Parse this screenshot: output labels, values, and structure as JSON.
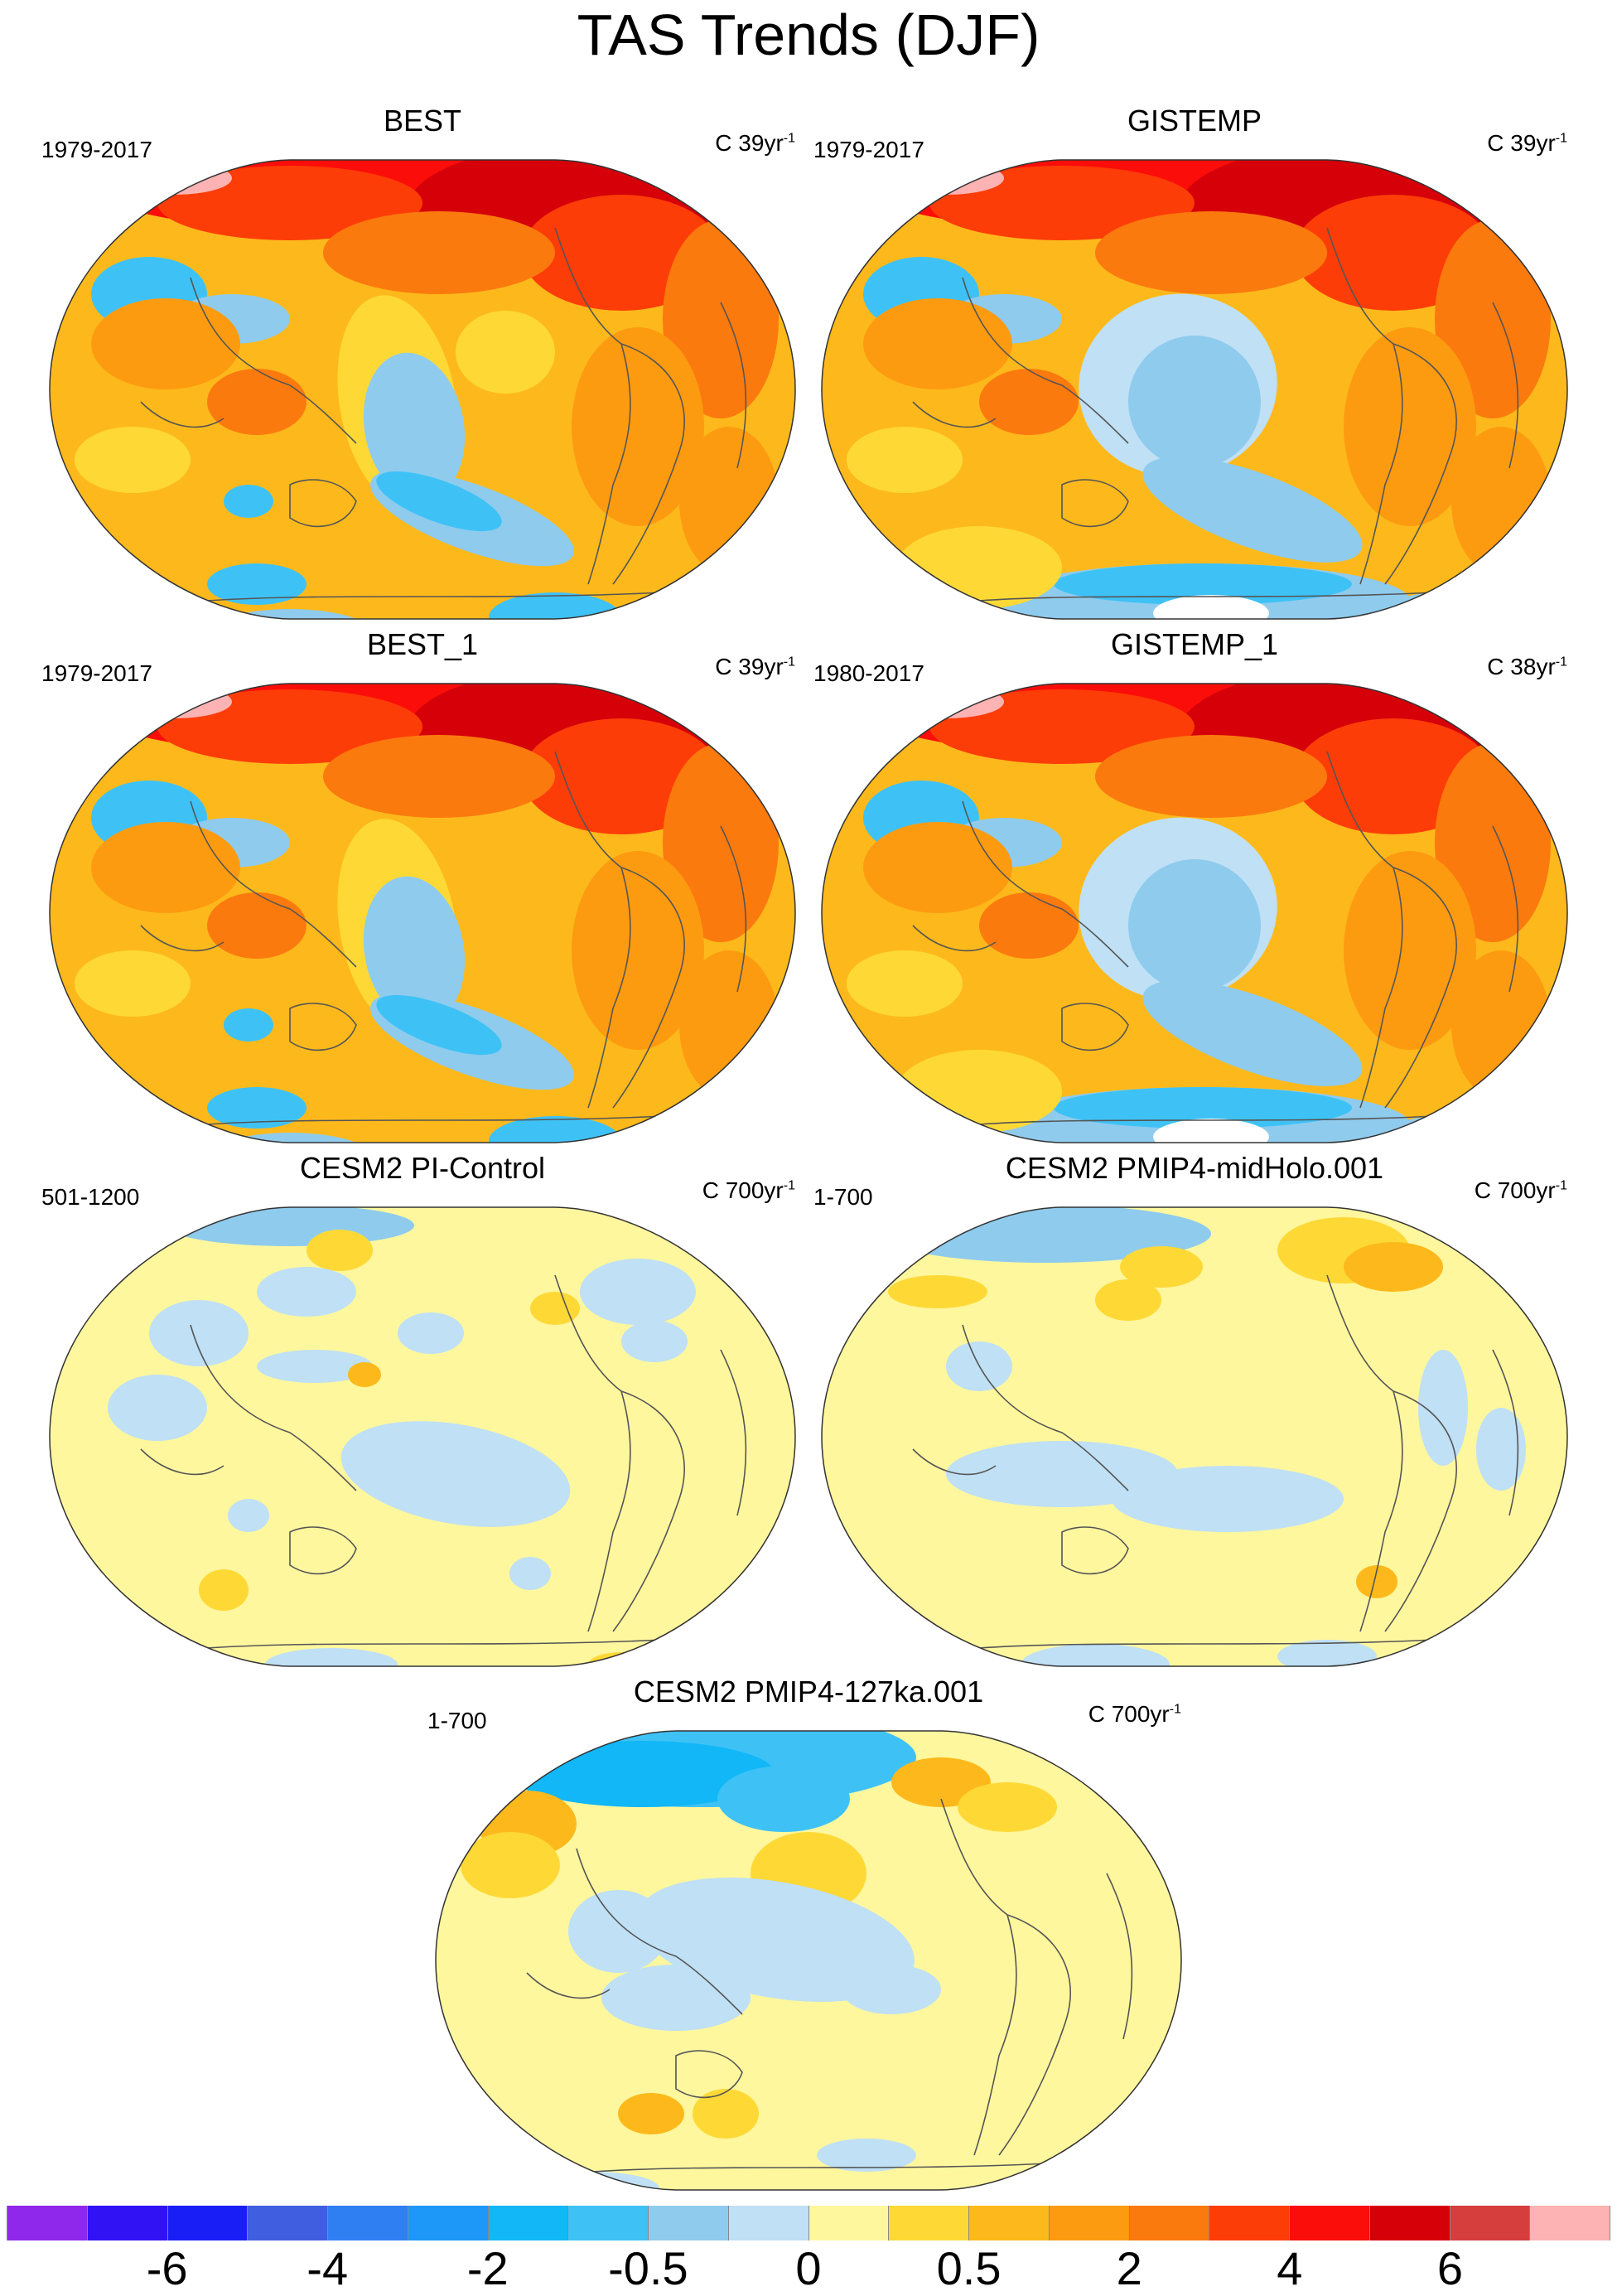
{
  "title": "TAS Trends (DJF)",
  "colors": {
    "violet": "#8f28ea",
    "blue_deep": "#3112f5",
    "blue": "#1a1ef6",
    "blue_mid": "#3f5ee0",
    "blue_2": "#2f7ff2",
    "blue_3": "#1d97f8",
    "blue_4": "#11b7f7",
    "blue_5": "#3ec2f6",
    "blue_6": "#8fcbed",
    "blue_pale": "#bfe0f5",
    "yellow_pale": "#fff79e",
    "yellow": "#fed936",
    "orange_1": "#fdb91b",
    "orange_2": "#fd9b10",
    "orange_3": "#fb7a0e",
    "red_1": "#fd3d07",
    "red_2": "#fb0d09",
    "red_3": "#d60009",
    "red_4": "#d63d3d",
    "pink": "#fdb3b3"
  },
  "panels": [
    {
      "title": "BEST",
      "years": "1979-2017",
      "units": "C 39yr",
      "units_sup": "-1"
    },
    {
      "title": "GISTEMP",
      "years": "1979-2017",
      "units": "C 39yr",
      "units_sup": "-1"
    },
    {
      "title": "BEST_1",
      "years": "1979-2017",
      "units": "C 39yr",
      "units_sup": "-1"
    },
    {
      "title": "GISTEMP_1",
      "years": "1980-2017",
      "units": "C 38yr",
      "units_sup": "-1"
    },
    {
      "title": "CESM2 PI-Control",
      "years": "501-1200",
      "units": "C 700yr",
      "units_sup": "-1"
    },
    {
      "title": "CESM2 PMIP4-midHolo.001",
      "years": "1-700",
      "units": "C 700yr",
      "units_sup": "-1"
    },
    {
      "title": "CESM2 PMIP4-127ka.001",
      "years": "1-700",
      "units": "C 700yr",
      "units_sup": "-1"
    }
  ],
  "colorbar": {
    "colors": [
      "#8f28ea",
      "#3112f5",
      "#1a1ef6",
      "#3f5ee0",
      "#2f7ff2",
      "#1d97f8",
      "#11b7f7",
      "#3ec2f6",
      "#8fcbed",
      "#bfe0f5",
      "#fff79e",
      "#fed936",
      "#fdb91b",
      "#fd9b10",
      "#fb7a0e",
      "#fd3d07",
      "#fb0d09",
      "#d60009",
      "#d63d3d",
      "#fdb3b3"
    ],
    "labels": [
      "-6",
      "-4",
      "-2",
      "-0.5",
      "0",
      "0.5",
      "2",
      "4",
      "6"
    ]
  }
}
